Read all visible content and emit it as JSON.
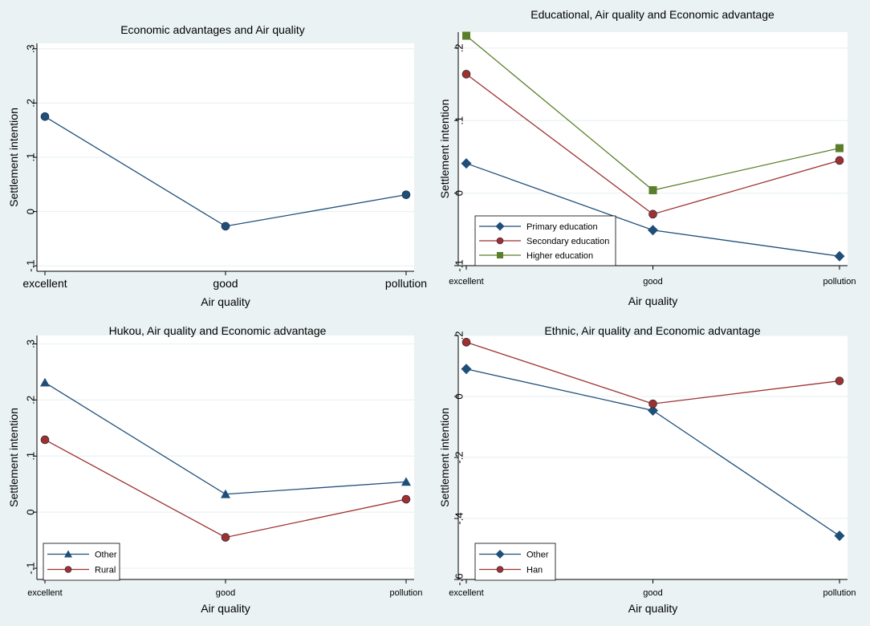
{
  "chart_data": [
    {
      "type": "line",
      "title": "Economic advantages and Air quality",
      "xlabel": "Air quality",
      "ylabel": "Settlement intention",
      "categories": [
        "excellent",
        "good",
        "pollution"
      ],
      "y_ticks": [
        -0.1,
        0,
        0.1,
        0.2,
        0.3
      ],
      "y_tick_labels": [
        "-.1",
        "0",
        ".1",
        ".2",
        ".3"
      ],
      "ylim": [
        -0.11,
        0.31
      ],
      "legend": null,
      "series": [
        {
          "name": "Economic advantage",
          "marker": "circle",
          "color": "#1f4e79",
          "values": [
            0.175,
            -0.027,
            0.031
          ]
        }
      ]
    },
    {
      "type": "line",
      "title": "Educational, Air quality and Economic advantage",
      "xlabel": "Air quality",
      "ylabel": "Settlement intention",
      "categories": [
        "excellent",
        "good",
        "pollution"
      ],
      "y_ticks": [
        -0.1,
        0,
        0.1,
        0.2
      ],
      "y_tick_labels": [
        "-.1",
        "0",
        ".1",
        ".2"
      ],
      "ylim": [
        -0.1,
        0.222
      ],
      "legend": "bottom-left",
      "series": [
        {
          "name": "Primary education",
          "marker": "diamond",
          "color": "#1f4e79",
          "values": [
            0.041,
            -0.051,
            -0.087
          ]
        },
        {
          "name": "Secondary education",
          "marker": "circle",
          "color": "#9e3030",
          "values": [
            0.164,
            -0.029,
            0.045
          ]
        },
        {
          "name": "Higher education",
          "marker": "square",
          "color": "#5a7f2b",
          "values": [
            0.217,
            0.004,
            0.062
          ]
        }
      ]
    },
    {
      "type": "line",
      "title": "Hukou, Air quality and Economic advantage",
      "xlabel": "Air quality",
      "ylabel": "Settlement intention",
      "categories": [
        "excellent",
        "good",
        "pollution"
      ],
      "y_ticks": [
        -0.1,
        0,
        0.1,
        0.2,
        0.3
      ],
      "y_tick_labels": [
        "-.1",
        "0",
        ".1",
        ".2",
        ".3"
      ],
      "ylim": [
        -0.12,
        0.315
      ],
      "legend": "bottom-left",
      "series": [
        {
          "name": "Other",
          "marker": "triangle",
          "color": "#1f4e79",
          "values": [
            0.231,
            0.032,
            0.054
          ]
        },
        {
          "name": "Rural",
          "marker": "circle",
          "color": "#9e3030",
          "values": [
            0.129,
            -0.045,
            0.023
          ]
        }
      ]
    },
    {
      "type": "line",
      "title": "Ethnic, Air quality and Economic advantage",
      "xlabel": "Air quality",
      "ylabel": "Settlement intention",
      "categories": [
        "excellent",
        "good",
        "pollution"
      ],
      "y_ticks": [
        -0.6,
        -0.4,
        -0.2,
        0,
        0.2
      ],
      "y_tick_labels": [
        "-.6",
        "-.4",
        "-.2",
        "0",
        ".2"
      ],
      "ylim": [
        -0.6,
        0.2
      ],
      "legend": "bottom-left",
      "series": [
        {
          "name": "Other",
          "marker": "diamond",
          "color": "#1f4e79",
          "values": [
            0.09,
            -0.046,
            -0.457
          ]
        },
        {
          "name": "Han",
          "marker": "circle",
          "color": "#9e3030",
          "values": [
            0.178,
            -0.024,
            0.051
          ]
        }
      ]
    }
  ]
}
